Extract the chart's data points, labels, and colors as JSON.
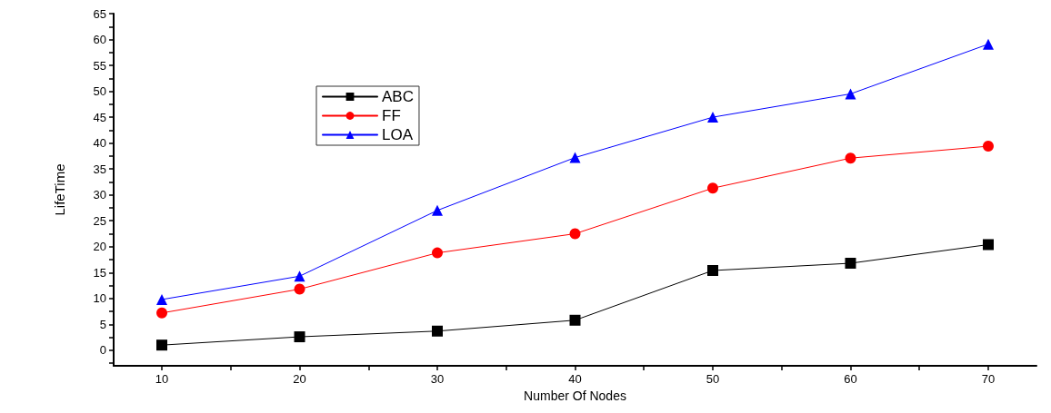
{
  "chart_data": {
    "type": "line",
    "xlabel": "Number Of Nodes",
    "ylabel": "LifeTime",
    "x": [
      10,
      20,
      30,
      40,
      50,
      60,
      70
    ],
    "series": [
      {
        "name": "ABC",
        "color": "#000000",
        "marker": "square",
        "values": [
          1,
          2.6,
          3.7,
          5.8,
          15.4,
          16.8,
          20.4
        ]
      },
      {
        "name": "FF",
        "color": "#ff0000",
        "marker": "circle",
        "values": [
          7.2,
          11.8,
          18.8,
          22.5,
          31.3,
          37.1,
          39.4
        ]
      },
      {
        "name": "LOA",
        "color": "#0000ff",
        "marker": "triangle",
        "values": [
          9.8,
          14.3,
          27,
          37.2,
          45,
          49.5,
          59.1
        ]
      }
    ],
    "xlim": [
      6.5,
      73.5
    ],
    "xticks": [
      10,
      {
        "value": 15,
        "label": null
      },
      20,
      {
        "value": 25,
        "label": null
      },
      30,
      {
        "value": 35,
        "label": null
      },
      40,
      {
        "value": 45,
        "label": null
      },
      50,
      {
        "value": 55,
        "label": null
      },
      60,
      {
        "value": 65,
        "label": null
      },
      70
    ],
    "ylim": [
      -3,
      65
    ],
    "yticks": [
      {
        "value": -2.5,
        "label": null
      },
      0,
      {
        "value": 2.5,
        "label": null
      },
      5,
      {
        "value": 7.5,
        "label": null
      },
      10,
      {
        "value": 12.5,
        "label": null
      },
      15,
      {
        "value": 17.5,
        "label": null
      },
      20,
      {
        "value": 22.5,
        "label": null
      },
      25,
      {
        "value": 27.5,
        "label": null
      },
      30,
      {
        "value": 32.5,
        "label": null
      },
      35,
      {
        "value": 37.5,
        "label": null
      },
      40,
      {
        "value": 42.5,
        "label": null
      },
      45,
      {
        "value": 47.5,
        "label": null
      },
      50,
      {
        "value": 52.5,
        "label": null
      },
      55,
      {
        "value": 57.5,
        "label": null
      },
      60,
      {
        "value": 62.5,
        "label": null
      },
      65
    ],
    "grid": false,
    "legend": "top left",
    "line_style": "solid"
  }
}
